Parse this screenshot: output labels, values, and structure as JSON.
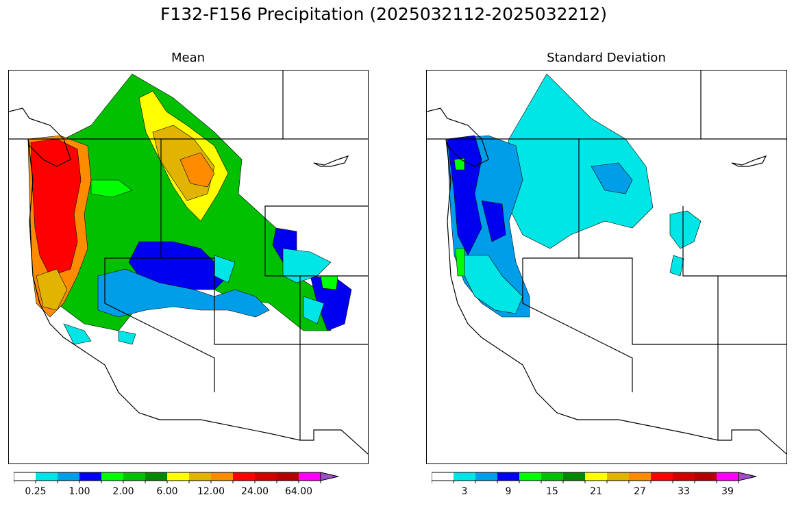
{
  "title": "F132-F156 Precipitation (2025032112-2025032212)",
  "panels": [
    {
      "id": "mean",
      "title": "Mean"
    },
    {
      "id": "sd",
      "title": "Standard Deviation"
    }
  ],
  "colors": [
    "#ffffff",
    "#00e5e5",
    "#009ee8",
    "#0000f0",
    "#00ff00",
    "#00c000",
    "#008800",
    "#ffff00",
    "#e0b400",
    "#ff8c00",
    "#ff0000",
    "#d00000",
    "#b40000",
    "#ff00ff",
    "#9a50c8"
  ],
  "colorbars": {
    "mean": {
      "tick_labels": [
        "0.25",
        "1.00",
        "2.00",
        "6.00",
        "12.00",
        "24.00",
        "64.00"
      ],
      "label_bins": [
        1,
        3,
        5,
        7,
        9,
        11,
        13
      ]
    },
    "sd": {
      "tick_labels": [
        "3",
        "9",
        "15",
        "21",
        "27",
        "33",
        "39"
      ],
      "label_bins": [
        1,
        3,
        5,
        7,
        9,
        11,
        13
      ]
    }
  },
  "regions": {
    "mean": [
      {
        "name": "coast-north",
        "color": "#ff0000"
      },
      {
        "name": "coast-orange",
        "color": "#ff8c00"
      },
      {
        "name": "coast-dark",
        "color": "#e0b400"
      },
      {
        "name": "inland-green",
        "color": "#00c000"
      },
      {
        "name": "idaho-yellow",
        "color": "#ffff00"
      },
      {
        "name": "central-blue",
        "color": "#0000f0"
      },
      {
        "name": "east-cyan",
        "color": "#00e5e5"
      },
      {
        "name": "south-lightblue",
        "color": "#009ee8"
      }
    ],
    "sd": [
      {
        "name": "coast-blue",
        "color": "#009ee8"
      },
      {
        "name": "coast-darkblue",
        "color": "#0000f0"
      },
      {
        "name": "inland-cyan",
        "color": "#00e5e5"
      },
      {
        "name": "coast-green",
        "color": "#00ff00"
      }
    ]
  }
}
